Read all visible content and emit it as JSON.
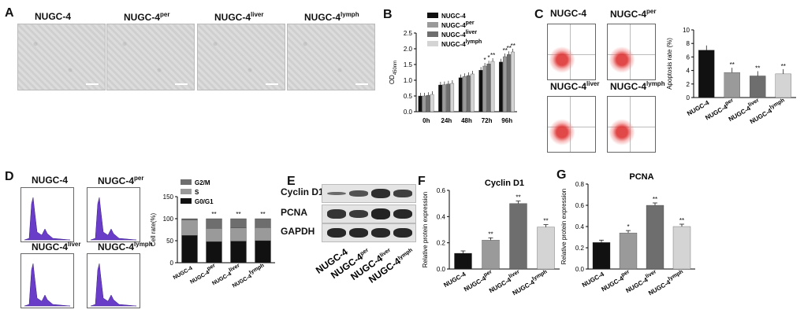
{
  "panels": {
    "A": {
      "letter": "A",
      "labels": [
        {
          "base": "NUGC-4",
          "sup": ""
        },
        {
          "base": "NUGC-4",
          "sup": "per"
        },
        {
          "base": "NUGC-4",
          "sup": "liver"
        },
        {
          "base": "NUGC-4",
          "sup": "lymph"
        }
      ]
    },
    "B": {
      "letter": "B"
    },
    "C": {
      "letter": "C",
      "flow_labels": [
        {
          "base": "NUGC-4",
          "sup": ""
        },
        {
          "base": "NUGC-4",
          "sup": "per"
        },
        {
          "base": "NUGC-4",
          "sup": "liver"
        },
        {
          "base": "NUGC-4",
          "sup": "lymph"
        }
      ]
    },
    "D": {
      "letter": "D",
      "hist_labels": [
        {
          "base": "NUGC-4",
          "sup": ""
        },
        {
          "base": "NUGC-4",
          "sup": "per"
        },
        {
          "base": "NUGC-4",
          "sup": "liver"
        },
        {
          "base": "NUGC-4",
          "sup": "lymph"
        }
      ]
    },
    "E": {
      "letter": "E",
      "proteins": [
        "Cyclin D1",
        "PCNA",
        "GAPDH"
      ],
      "lanes": [
        {
          "base": "NUGC-4",
          "sup": ""
        },
        {
          "base": "NUGC-4",
          "sup": "per"
        },
        {
          "base": "NUGC-4",
          "sup": "liver"
        },
        {
          "base": "NUGC-4",
          "sup": "lymph"
        }
      ]
    },
    "F": {
      "letter": "F"
    },
    "G": {
      "letter": "G"
    }
  },
  "chart_data": [
    {
      "id": "B",
      "type": "bar",
      "title": "",
      "xlabel": "",
      "ylabel": "OD",
      "ylabel_sub": "450nm",
      "categories": [
        "0h",
        "24h",
        "48h",
        "72h",
        "96h"
      ],
      "ylim": [
        0,
        2.5
      ],
      "yticks": [
        "0.0",
        "0.5",
        "1.0",
        "1.5",
        "2.0",
        "2.5"
      ],
      "legend_position": "top-right",
      "series": [
        {
          "name": "NUGC-4",
          "sup": "",
          "color": "#111111",
          "values": [
            0.5,
            0.85,
            1.08,
            1.32,
            1.58
          ]
        },
        {
          "name": "NUGC-4",
          "sup": "per",
          "color": "#9a9a9a",
          "values": [
            0.5,
            0.86,
            1.12,
            1.45,
            1.75
          ]
        },
        {
          "name": "NUGC-4",
          "sup": "liver",
          "color": "#6e6e6e",
          "values": [
            0.52,
            0.88,
            1.15,
            1.52,
            1.82
          ]
        },
        {
          "name": "NUGC-4",
          "sup": "lymph",
          "color": "#d4d4d4",
          "values": [
            0.55,
            0.9,
            1.2,
            1.6,
            1.9
          ]
        }
      ],
      "annotations": [
        {
          "category": "72h",
          "text": "*"
        },
        {
          "category": "72h",
          "text": "*"
        },
        {
          "category": "72h",
          "text": "**"
        },
        {
          "category": "96h",
          "text": "**"
        },
        {
          "category": "96h",
          "text": "**"
        },
        {
          "category": "96h",
          "text": "**"
        }
      ]
    },
    {
      "id": "C",
      "type": "bar",
      "title": "",
      "xlabel": "",
      "ylabel": "Apoptosis rate (%)",
      "categories": [
        {
          "base": "NUGC-4",
          "sup": ""
        },
        {
          "base": "NUGC-4",
          "sup": "per"
        },
        {
          "base": "NUGC-4",
          "sup": "liver"
        },
        {
          "base": "NUGC-4",
          "sup": "lymph"
        }
      ],
      "ylim": [
        0,
        10
      ],
      "yticks": [
        "0",
        "2",
        "4",
        "6",
        "8",
        "10"
      ],
      "series": [
        {
          "values": [
            7.0,
            3.7,
            3.2,
            3.5
          ],
          "colors": [
            "#111111",
            "#9a9a9a",
            "#6e6e6e",
            "#d4d4d4"
          ]
        }
      ],
      "annotations": [
        "",
        "**",
        "**",
        "**"
      ]
    },
    {
      "id": "D",
      "type": "bar",
      "title": "",
      "xlabel": "",
      "ylabel": "Cell rate(%)",
      "stacked": true,
      "categories": [
        {
          "base": "NUGC-4",
          "sup": ""
        },
        {
          "base": "NUGC-4",
          "sup": "per"
        },
        {
          "base": "NUGC-4",
          "sup": "liver"
        },
        {
          "base": "NUGC-4",
          "sup": "lymph"
        }
      ],
      "ylim": [
        0,
        150
      ],
      "yticks": [
        "0",
        "50",
        "100",
        "150"
      ],
      "legend_position": "top",
      "series": [
        {
          "name": "G0/G1",
          "color": "#111111",
          "values": [
            62,
            48,
            49,
            50
          ]
        },
        {
          "name": "S",
          "color": "#9a9a9a",
          "values": [
            35,
            30,
            30,
            30
          ]
        },
        {
          "name": "G2/M",
          "color": "#6e6e6e",
          "values": [
            3,
            22,
            21,
            20
          ]
        }
      ],
      "annotations": [
        "",
        "**",
        "**",
        "**"
      ]
    },
    {
      "id": "F",
      "type": "bar",
      "title": "Cyclin D1",
      "xlabel": "",
      "ylabel": "Relative protein expression",
      "categories": [
        {
          "base": "NUGC-4",
          "sup": ""
        },
        {
          "base": "NUGC-4",
          "sup": "per"
        },
        {
          "base": "NUGC-4",
          "sup": "liver"
        },
        {
          "base": "NUGC-4",
          "sup": "lymph"
        }
      ],
      "ylim": [
        0,
        0.6
      ],
      "yticks": [
        "0.0",
        "0.2",
        "0.4",
        "0.6"
      ],
      "series": [
        {
          "values": [
            0.12,
            0.22,
            0.5,
            0.32
          ],
          "colors": [
            "#111111",
            "#9a9a9a",
            "#6e6e6e",
            "#d4d4d4"
          ]
        }
      ],
      "annotations": [
        "",
        "**",
        "**",
        "**"
      ]
    },
    {
      "id": "G",
      "type": "bar",
      "title": "PCNA",
      "xlabel": "",
      "ylabel": "Relative protein expression",
      "categories": [
        {
          "base": "NUGC-4",
          "sup": ""
        },
        {
          "base": "NUGC-4",
          "sup": "per"
        },
        {
          "base": "NUGC-4",
          "sup": "liver"
        },
        {
          "base": "NUGC-4",
          "sup": "lymph"
        }
      ],
      "ylim": [
        0,
        0.8
      ],
      "yticks": [
        "0.0",
        "0.2",
        "0.4",
        "0.6",
        "0.8"
      ],
      "series": [
        {
          "values": [
            0.25,
            0.34,
            0.6,
            0.4
          ],
          "colors": [
            "#111111",
            "#9a9a9a",
            "#6e6e6e",
            "#d4d4d4"
          ]
        }
      ],
      "annotations": [
        "",
        "*",
        "**",
        "**"
      ]
    }
  ]
}
